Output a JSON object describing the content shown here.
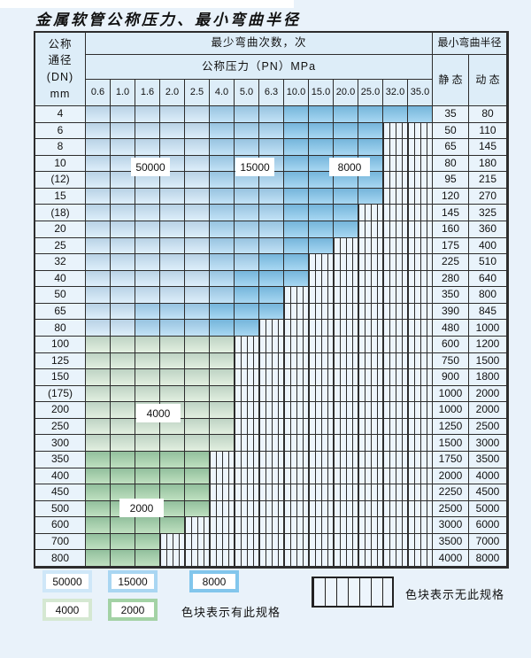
{
  "title": "金属软管公称压力、最小弯曲半径",
  "table": {
    "header": {
      "dn_lines": [
        "公称",
        "通径",
        "(DN)",
        "mm"
      ],
      "bend_cycles": "最少弯曲次数，次",
      "pressure": "公称压力（PN）MPa",
      "min_radius": "最小弯曲半径",
      "static": "静 态",
      "dynamic": "动 态",
      "pressure_columns": [
        "0.6",
        "1.0",
        "1.6",
        "2.0",
        "2.5",
        "4.0",
        "5.0",
        "6.3",
        "10.0",
        "15.0",
        "20.0",
        "25.0",
        "32.0",
        "35.0"
      ]
    },
    "rows": [
      {
        "dn": "4",
        "bands": [
          [
            "c50",
            5
          ],
          [
            "c15",
            3
          ],
          [
            "c8",
            6
          ]
        ],
        "static": "35",
        "dynamic": "80"
      },
      {
        "dn": "6",
        "bands": [
          [
            "c50",
            5
          ],
          [
            "c15",
            3
          ],
          [
            "c8",
            4
          ]
        ],
        "static": "50",
        "dynamic": "110"
      },
      {
        "dn": "8",
        "bands": [
          [
            "c50",
            5
          ],
          [
            "c15",
            3
          ],
          [
            "c8",
            4
          ]
        ],
        "static": "65",
        "dynamic": "145"
      },
      {
        "dn": "10",
        "bands": [
          [
            "c50",
            5
          ],
          [
            "c15",
            3
          ],
          [
            "c8",
            4
          ]
        ],
        "static": "80",
        "dynamic": "180"
      },
      {
        "dn": "(12)",
        "bands": [
          [
            "c50",
            5
          ],
          [
            "c15",
            3
          ],
          [
            "c8",
            4
          ]
        ],
        "static": "95",
        "dynamic": "215"
      },
      {
        "dn": "15",
        "bands": [
          [
            "c50",
            5
          ],
          [
            "c15",
            3
          ],
          [
            "c8",
            4
          ]
        ],
        "static": "120",
        "dynamic": "270"
      },
      {
        "dn": "(18)",
        "bands": [
          [
            "c50",
            5
          ],
          [
            "c15",
            3
          ],
          [
            "c8",
            3
          ]
        ],
        "static": "145",
        "dynamic": "325"
      },
      {
        "dn": "20",
        "bands": [
          [
            "c50",
            5
          ],
          [
            "c15",
            3
          ],
          [
            "c8",
            3
          ]
        ],
        "static": "160",
        "dynamic": "360"
      },
      {
        "dn": "25",
        "bands": [
          [
            "c50",
            5
          ],
          [
            "c15",
            3
          ],
          [
            "c8",
            2
          ]
        ],
        "static": "175",
        "dynamic": "400"
      },
      {
        "dn": "32",
        "bands": [
          [
            "c50",
            5
          ],
          [
            "c15",
            2
          ],
          [
            "c8",
            2
          ]
        ],
        "static": "225",
        "dynamic": "510"
      },
      {
        "dn": "40",
        "bands": [
          [
            "c50",
            5
          ],
          [
            "c15",
            1
          ],
          [
            "c8",
            3
          ]
        ],
        "static": "280",
        "dynamic": "640"
      },
      {
        "dn": "50",
        "bands": [
          [
            "c50",
            5
          ],
          [
            "c15",
            1
          ],
          [
            "c8",
            2
          ]
        ],
        "static": "350",
        "dynamic": "800"
      },
      {
        "dn": "65",
        "bands": [
          [
            "c50",
            2
          ],
          [
            "c15",
            3
          ],
          [
            "c8",
            3
          ]
        ],
        "static": "390",
        "dynamic": "845"
      },
      {
        "dn": "80",
        "bands": [
          [
            "c50",
            2
          ],
          [
            "c15",
            3
          ],
          [
            "c8",
            2
          ]
        ],
        "static": "480",
        "dynamic": "1000"
      },
      {
        "dn": "100",
        "bands": [
          [
            "g4",
            6
          ]
        ],
        "static": "600",
        "dynamic": "1200"
      },
      {
        "dn": "125",
        "bands": [
          [
            "g4",
            6
          ]
        ],
        "static": "750",
        "dynamic": "1500"
      },
      {
        "dn": "150",
        "bands": [
          [
            "g4",
            6
          ]
        ],
        "static": "900",
        "dynamic": "1800"
      },
      {
        "dn": "(175)",
        "bands": [
          [
            "g4",
            6
          ]
        ],
        "static": "1000",
        "dynamic": "2000"
      },
      {
        "dn": "200",
        "bands": [
          [
            "g4",
            6
          ]
        ],
        "static": "1000",
        "dynamic": "2000"
      },
      {
        "dn": "250",
        "bands": [
          [
            "g4",
            6
          ]
        ],
        "static": "1250",
        "dynamic": "2500"
      },
      {
        "dn": "300",
        "bands": [
          [
            "g4",
            6
          ]
        ],
        "static": "1500",
        "dynamic": "3000"
      },
      {
        "dn": "350",
        "bands": [
          [
            "g2",
            5
          ]
        ],
        "static": "1750",
        "dynamic": "3500"
      },
      {
        "dn": "400",
        "bands": [
          [
            "g2",
            5
          ]
        ],
        "static": "2000",
        "dynamic": "4000"
      },
      {
        "dn": "450",
        "bands": [
          [
            "g2",
            5
          ]
        ],
        "static": "2250",
        "dynamic": "4500"
      },
      {
        "dn": "500",
        "bands": [
          [
            "g2",
            5
          ]
        ],
        "static": "2500",
        "dynamic": "5000"
      },
      {
        "dn": "600",
        "bands": [
          [
            "g2",
            4
          ]
        ],
        "static": "3000",
        "dynamic": "6000"
      },
      {
        "dn": "700",
        "bands": [
          [
            "g2",
            3
          ]
        ],
        "static": "3500",
        "dynamic": "7000"
      },
      {
        "dn": "800",
        "bands": [
          [
            "g2",
            3
          ]
        ],
        "static": "4000",
        "dynamic": "8000"
      }
    ]
  },
  "overlays": [
    {
      "text": "50000"
    },
    {
      "text": "15000"
    },
    {
      "text": "8000"
    },
    {
      "text": "4000"
    },
    {
      "text": "2000"
    }
  ],
  "legend": {
    "swatches": [
      {
        "label": "50000",
        "color": "c50"
      },
      {
        "label": "15000",
        "color": "c15"
      },
      {
        "label": "8000",
        "color": "c8"
      },
      {
        "label": "4000",
        "color": "g4"
      },
      {
        "label": "2000",
        "color": "g2"
      }
    ],
    "has_spec_text": "色块表示有此规格",
    "no_spec_text": "色块表示无此规格"
  },
  "colors": {
    "c50": "#cfe7f8",
    "c15": "#a9d6f2",
    "c8": "#82c6ec",
    "g4": "#d5e8d2",
    "g2": "#a3d2a5",
    "hatch_bg": "#edf5fc",
    "grid_line": "#2d2d2d",
    "page_bg": "#e9f2fa",
    "header_bg": "#ddedf8",
    "label_cell_bg": "#e9f3fb"
  }
}
